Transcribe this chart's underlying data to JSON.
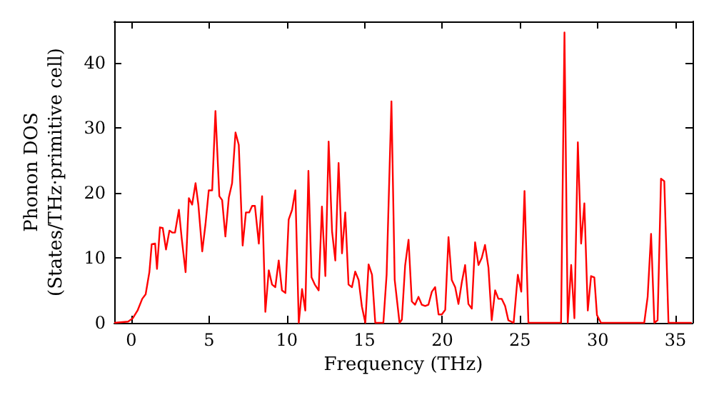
{
  "chart_data": {
    "type": "line",
    "xlabel": "Frequency (THz)",
    "ylabel": "Phonon DOS\n(States/THz·primitive cell)",
    "xlim": [
      -1.1,
      36.1
    ],
    "ylim": [
      0,
      46.4
    ],
    "xticks": [
      0,
      5,
      10,
      15,
      20,
      25,
      30,
      35
    ],
    "yticks": [
      0,
      10,
      20,
      30,
      40
    ],
    "series": [
      {
        "color": "#ff0000",
        "x": [
          -1.1,
          -0.21,
          0.09,
          0.4,
          0.7,
          0.92,
          1.16,
          1.31,
          1.53,
          1.65,
          1.84,
          2.02,
          2.23,
          2.45,
          2.63,
          2.81,
          3.06,
          3.24,
          3.49,
          3.7,
          3.91,
          4.13,
          4.31,
          4.56,
          4.77,
          4.98,
          5.2,
          5.41,
          5.66,
          5.84,
          6.05,
          6.27,
          6.48,
          6.7,
          6.91,
          7.16,
          7.37,
          7.58,
          7.77,
          7.95,
          8.2,
          8.41,
          8.62,
          8.84,
          9.05,
          9.26,
          9.48,
          9.69,
          9.91,
          10.12,
          10.34,
          10.55,
          10.77,
          10.98,
          11.19,
          11.39,
          11.59,
          11.8,
          12.05,
          12.26,
          12.48,
          12.69,
          12.91,
          13.12,
          13.33,
          13.55,
          13.76,
          13.97,
          14.19,
          14.4,
          14.62,
          14.83,
          15.05,
          15.26,
          15.48,
          15.69,
          16.21,
          16.42,
          16.73,
          16.94,
          17.25,
          17.4,
          17.61,
          17.83,
          18.04,
          18.25,
          18.47,
          18.68,
          18.9,
          19.11,
          19.33,
          19.54,
          19.76,
          19.97,
          20.19,
          20.4,
          20.61,
          20.83,
          21.04,
          21.26,
          21.47,
          21.68,
          21.9,
          22.11,
          22.33,
          22.54,
          22.75,
          22.97,
          23.18,
          23.4,
          23.61,
          23.82,
          24.04,
          24.25,
          24.59,
          24.86,
          25.08,
          25.29,
          25.54,
          27.64,
          27.86,
          28.07,
          28.29,
          28.5,
          28.72,
          28.93,
          29.14,
          29.36,
          29.57,
          29.78,
          29.95,
          30.21,
          32.99,
          33.21,
          33.43,
          33.64,
          33.85,
          34.07,
          34.28,
          34.55,
          36.05
        ],
        "values": [
          0,
          0.2,
          0.7,
          1.9,
          3.7,
          4.4,
          7.8,
          12.1,
          12.2,
          8.3,
          14.7,
          14.6,
          11.3,
          14.2,
          13.9,
          13.9,
          17.4,
          13,
          7.8,
          19.2,
          18.2,
          21.5,
          18.2,
          11,
          15.2,
          20.4,
          20.4,
          32.6,
          19.5,
          18.9,
          13.3,
          19.3,
          21.5,
          29.3,
          27.4,
          11.9,
          17,
          17,
          18,
          18,
          12.2,
          19.5,
          1.7,
          8.1,
          5.9,
          5.5,
          9.6,
          5,
          4.6,
          15.9,
          17.4,
          20.4,
          0,
          5.2,
          1.9,
          23.4,
          7,
          5.9,
          5,
          17.9,
          7.2,
          27.9,
          14.1,
          9.6,
          24.6,
          10.7,
          17,
          5.9,
          5.5,
          7.9,
          6.6,
          2.5,
          0,
          9,
          7.4,
          0,
          0,
          7.4,
          34.1,
          6.6,
          0,
          0.5,
          8.8,
          12.8,
          3.3,
          2.8,
          4,
          2.8,
          2.6,
          2.8,
          4.8,
          5.5,
          1.3,
          1.3,
          2,
          13.2,
          6.6,
          5.5,
          2.9,
          6.3,
          8.9,
          2.9,
          2.2,
          12.4,
          8.9,
          10,
          12,
          8.5,
          0.4,
          5,
          3.7,
          3.7,
          2.6,
          0.4,
          0,
          7.4,
          4.8,
          20.3,
          0,
          0,
          44.7,
          0,
          8.9,
          0.7,
          27.8,
          12.2,
          18.4,
          1.9,
          7.2,
          7,
          1.2,
          0,
          0,
          4,
          13.7,
          0,
          0.4,
          22.2,
          21.8,
          0,
          0
        ]
      }
    ]
  }
}
